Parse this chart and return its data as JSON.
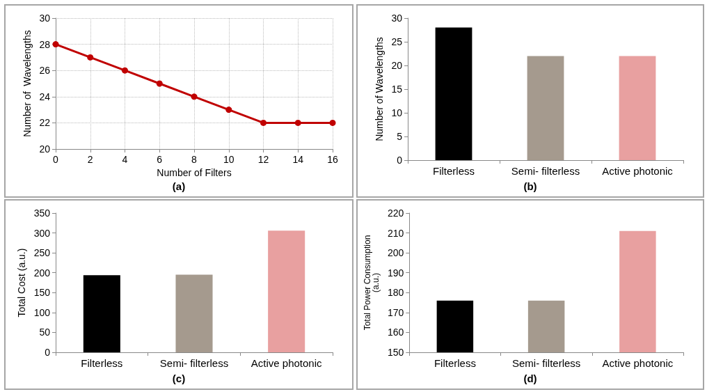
{
  "chart_data": [
    {
      "type": "line",
      "title": "(a)",
      "xlabel": "Number of Filters",
      "ylabel": "Number of  Wavelengths",
      "x": [
        0,
        2,
        4,
        6,
        8,
        10,
        12,
        14,
        16
      ],
      "series": [
        {
          "color": "#c00000",
          "values": [
            28,
            27,
            26,
            25,
            24,
            23,
            22,
            22,
            22
          ]
        }
      ],
      "xlim": [
        0,
        16
      ],
      "xticks": [
        0,
        2,
        4,
        6,
        8,
        10,
        12,
        14,
        16
      ],
      "ylim": [
        20,
        30
      ],
      "yticks": [
        20,
        22,
        24,
        26,
        28,
        30
      ],
      "grid": true,
      "marker": "circle",
      "line_style": "solid"
    },
    {
      "type": "bar",
      "title": "(b)",
      "ylabel": "Number of Wavelengths",
      "categories": [
        "Filterless",
        "Semi- filterless",
        "Active photonic"
      ],
      "values": [
        28,
        22,
        22
      ],
      "colors": [
        "#000000",
        "#a59a8e",
        "#e8a0a0"
      ],
      "ylim": [
        0,
        30
      ],
      "yticks": [
        0,
        5,
        10,
        15,
        20,
        25,
        30
      ]
    },
    {
      "type": "bar",
      "title": "(c)",
      "ylabel": "Total Cost (a.u.)",
      "categories": [
        "Filterless",
        "Semi- filterless",
        "Active photonic"
      ],
      "values": [
        194,
        195,
        306
      ],
      "colors": [
        "#000000",
        "#a59a8e",
        "#e8a0a0"
      ],
      "ylim": [
        0,
        350
      ],
      "yticks": [
        0,
        50,
        100,
        150,
        200,
        250,
        300,
        350
      ]
    },
    {
      "type": "bar",
      "title": "(d)",
      "ylabel": "Total Power Consumption (a.u.)",
      "categories": [
        "Filterless",
        "Semi- filterless",
        "Active photonic"
      ],
      "values": [
        176,
        176,
        211
      ],
      "colors": [
        "#000000",
        "#a59a8e",
        "#e8a0a0"
      ],
      "ylim": [
        150,
        220
      ],
      "yticks": [
        150,
        160,
        170,
        180,
        190,
        200,
        210,
        220
      ]
    }
  ]
}
